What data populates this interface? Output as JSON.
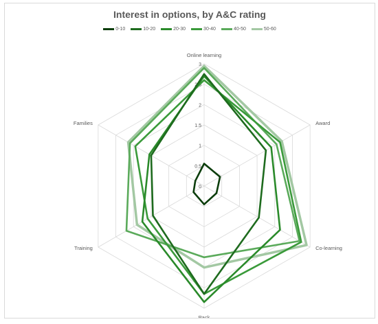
{
  "chart_data": {
    "type": "radar",
    "title": "Interest in options, by A&C rating",
    "axes": [
      "Online learning",
      "Award",
      "Co-learning",
      "Pack",
      "Training",
      "Families"
    ],
    "r_ticks": [
      "0",
      "0.5",
      "1",
      "1.5",
      "2",
      "2.5",
      "3"
    ],
    "r_range": [
      0,
      3
    ],
    "legend_position": "top",
    "series": [
      {
        "name": "0-10",
        "color": "#0b3d0b",
        "values": [
          0.55,
          0.45,
          0.35,
          0.45,
          0.3,
          0.25
        ]
      },
      {
        "name": "10-20",
        "color": "#1e6b1e",
        "values": [
          2.75,
          1.75,
          1.55,
          2.65,
          1.45,
          1.5
        ]
      },
      {
        "name": "20-30",
        "color": "#2a8a2a",
        "values": [
          2.7,
          1.9,
          2.15,
          2.85,
          1.75,
          1.55
        ]
      },
      {
        "name": "30-40",
        "color": "#3a9a3a",
        "values": [
          2.6,
          2.15,
          2.75,
          2.65,
          1.6,
          1.95
        ]
      },
      {
        "name": "40-50",
        "color": "#5aaa5a",
        "values": [
          2.9,
          2.05,
          2.7,
          1.75,
          2.2,
          2.1
        ]
      },
      {
        "name": "50-60",
        "color": "#a3c8a3",
        "values": [
          2.95,
          2.2,
          2.9,
          2.0,
          1.9,
          2.15
        ]
      }
    ]
  }
}
